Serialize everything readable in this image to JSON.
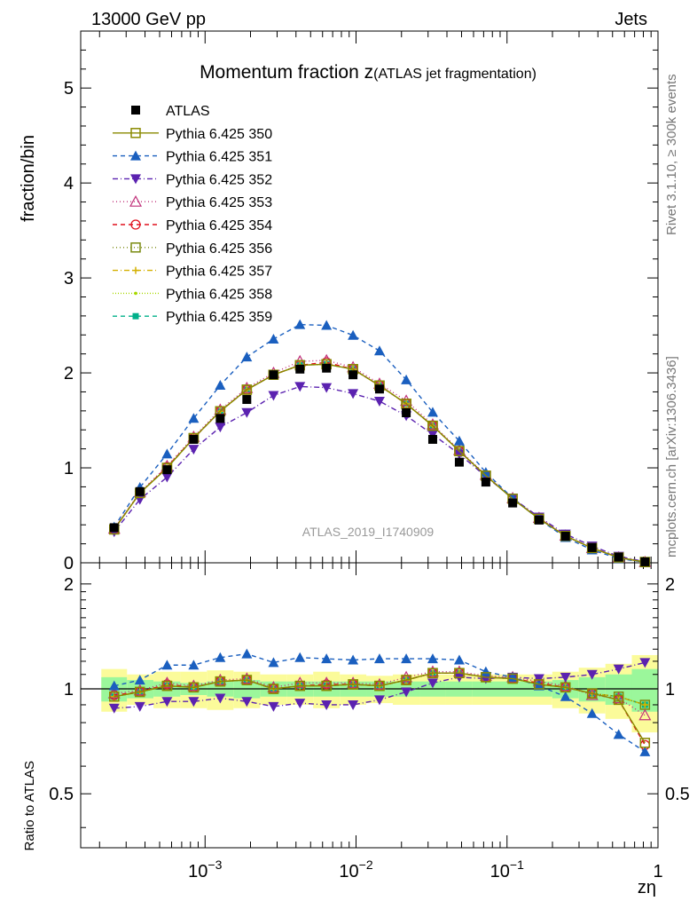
{
  "header": {
    "left": "13000 GeV pp",
    "right": "Jets"
  },
  "side_labels": {
    "rivet": "Rivet 3.1.10, ≥ 300k events",
    "mcplots": "mcplots.cern.ch [arXiv:1306.3436]"
  },
  "watermark": "ATLAS_2019_I1740909",
  "chart_data": {
    "type": "scatter",
    "title_main": "Momentum fraction z",
    "title_sub": "(ATLAS jet fragmentation)",
    "xlabel": "zη",
    "ylabel": "fraction/bin",
    "ratio_ylabel": "Ratio to ATLAS",
    "xscale": "log",
    "xlim": [
      0.00015,
      1.0
    ],
    "ylim": [
      0,
      5.6
    ],
    "ratio_ylim": [
      0.35,
      2.3
    ],
    "x_ticks": [
      {
        "label": "10",
        "exp": "−3",
        "value": 0.001
      },
      {
        "label": "10",
        "exp": "−2",
        "value": 0.01
      },
      {
        "label": "10",
        "exp": "−1",
        "value": 0.1
      },
      {
        "label": "1",
        "exp": "",
        "value": 1
      }
    ],
    "y_ticks": [
      "0",
      "1",
      "2",
      "3",
      "4",
      "5"
    ],
    "ratio_ticks": [
      "0.5",
      "1",
      "2"
    ],
    "x": [
      0.00025,
      0.00037,
      0.00056,
      0.00084,
      0.00126,
      0.00189,
      0.00284,
      0.00425,
      0.00637,
      0.00955,
      0.0143,
      0.0215,
      0.0322,
      0.0483,
      0.0724,
      0.109,
      0.163,
      0.244,
      0.366,
      0.549,
      0.82
    ],
    "atlas": {
      "name": "ATLAS",
      "color": "#000000",
      "values": [
        0.37,
        0.75,
        0.98,
        1.3,
        1.52,
        1.72,
        1.98,
        2.04,
        2.05,
        1.98,
        1.83,
        1.58,
        1.3,
        1.06,
        0.85,
        0.63,
        0.45,
        0.28,
        0.16,
        0.06,
        0.01
      ],
      "band_inner": [
        0.08,
        0.06,
        0.05,
        0.04,
        0.05,
        0.06,
        0.05,
        0.05,
        0.05,
        0.05,
        0.05,
        0.05,
        0.05,
        0.05,
        0.05,
        0.05,
        0.05,
        0.06,
        0.08,
        0.1,
        0.14
      ],
      "band_outer": [
        0.14,
        0.1,
        0.12,
        0.12,
        0.13,
        0.12,
        0.1,
        0.1,
        0.12,
        0.1,
        0.09,
        0.1,
        0.1,
        0.1,
        0.1,
        0.1,
        0.1,
        0.12,
        0.15,
        0.18,
        0.25
      ]
    },
    "series": [
      {
        "name": "Pythia 6.425 350",
        "color": "#8a8a00",
        "marker": "square-open",
        "dash": "",
        "line": true,
        "ratio": [
          0.95,
          0.98,
          1.02,
          1.01,
          1.05,
          1.06,
          1.0,
          1.02,
          1.02,
          1.03,
          1.02,
          1.06,
          1.11,
          1.11,
          1.08,
          1.07,
          1.03,
          1.01,
          0.97,
          0.93,
          0.7
        ]
      },
      {
        "name": "Pythia 6.425 351",
        "color": "#1a5fbf",
        "marker": "triangle-up",
        "dash": "5,4",
        "line": false,
        "ratio": [
          1.02,
          1.06,
          1.17,
          1.17,
          1.23,
          1.26,
          1.19,
          1.23,
          1.22,
          1.21,
          1.22,
          1.22,
          1.22,
          1.21,
          1.12,
          1.08,
          1.02,
          0.95,
          0.85,
          0.74,
          0.66
        ]
      },
      {
        "name": "Pythia 6.425 352",
        "color": "#5b22b0",
        "marker": "triangle-down",
        "dash": "6,3,1,3",
        "line": false,
        "ratio": [
          0.88,
          0.89,
          0.92,
          0.92,
          0.94,
          0.92,
          0.89,
          0.91,
          0.9,
          0.9,
          0.93,
          0.98,
          1.04,
          1.08,
          1.07,
          1.08,
          1.07,
          1.08,
          1.1,
          1.14,
          1.19
        ]
      },
      {
        "name": "Pythia 6.425 353",
        "color": "#c0307a",
        "marker": "triangle-open",
        "dash": "1,3",
        "line": false,
        "ratio": [
          0.97,
          0.99,
          1.04,
          1.02,
          1.06,
          1.07,
          1.01,
          1.04,
          1.04,
          1.04,
          1.03,
          1.08,
          1.12,
          1.12,
          1.09,
          1.08,
          1.05,
          1.02,
          0.96,
          0.94,
          0.84
        ]
      },
      {
        "name": "Pythia 6.425 354",
        "color": "#e0101e",
        "marker": "circle-open",
        "dash": "5,4",
        "line": false,
        "ratio": [
          0.96,
          0.98,
          1.03,
          1.01,
          1.05,
          1.06,
          1.0,
          1.02,
          1.03,
          1.03,
          1.02,
          1.06,
          1.11,
          1.11,
          1.08,
          1.07,
          1.04,
          1.01,
          0.97,
          0.93,
          0.69
        ]
      },
      {
        "name": "Pythia 6.425 356",
        "color": "#7a8a10",
        "marker": "square-open",
        "dash": "1,3",
        "line": false,
        "ratio": [
          0.95,
          0.98,
          1.02,
          1.01,
          1.05,
          1.06,
          1.0,
          1.02,
          1.02,
          1.03,
          1.02,
          1.06,
          1.11,
          1.11,
          1.08,
          1.07,
          1.03,
          1.01,
          0.97,
          0.95,
          0.9
        ]
      },
      {
        "name": "Pythia 6.425 357",
        "color": "#d4b000",
        "marker": "star",
        "dash": "6,3,1,3",
        "line": false,
        "ratio": [
          0.95,
          0.98,
          1.02,
          1.01,
          1.05,
          1.06,
          1.0,
          1.02,
          1.02,
          1.03,
          1.02,
          1.06,
          1.11,
          1.11,
          1.08,
          1.07,
          1.03,
          1.01,
          0.97,
          0.95,
          0.9
        ]
      },
      {
        "name": "Pythia 6.425 358",
        "color": "#a8d800",
        "marker": "dot",
        "dash": "1,2",
        "line": false,
        "ratio": [
          0.95,
          0.98,
          1.02,
          1.01,
          1.05,
          1.06,
          1.0,
          1.02,
          1.02,
          1.03,
          1.02,
          1.06,
          1.11,
          1.11,
          1.08,
          1.07,
          1.03,
          1.01,
          0.97,
          0.95,
          0.9
        ]
      },
      {
        "name": "Pythia 6.425 359",
        "color": "#00b08a",
        "marker": "square-filled",
        "dash": "5,4",
        "line": false,
        "ratio": [
          0.95,
          0.98,
          1.02,
          1.01,
          1.05,
          1.06,
          1.0,
          1.02,
          1.02,
          1.03,
          1.02,
          1.06,
          1.11,
          1.11,
          1.08,
          1.07,
          1.03,
          1.01,
          0.97,
          0.95,
          0.9
        ]
      }
    ]
  }
}
